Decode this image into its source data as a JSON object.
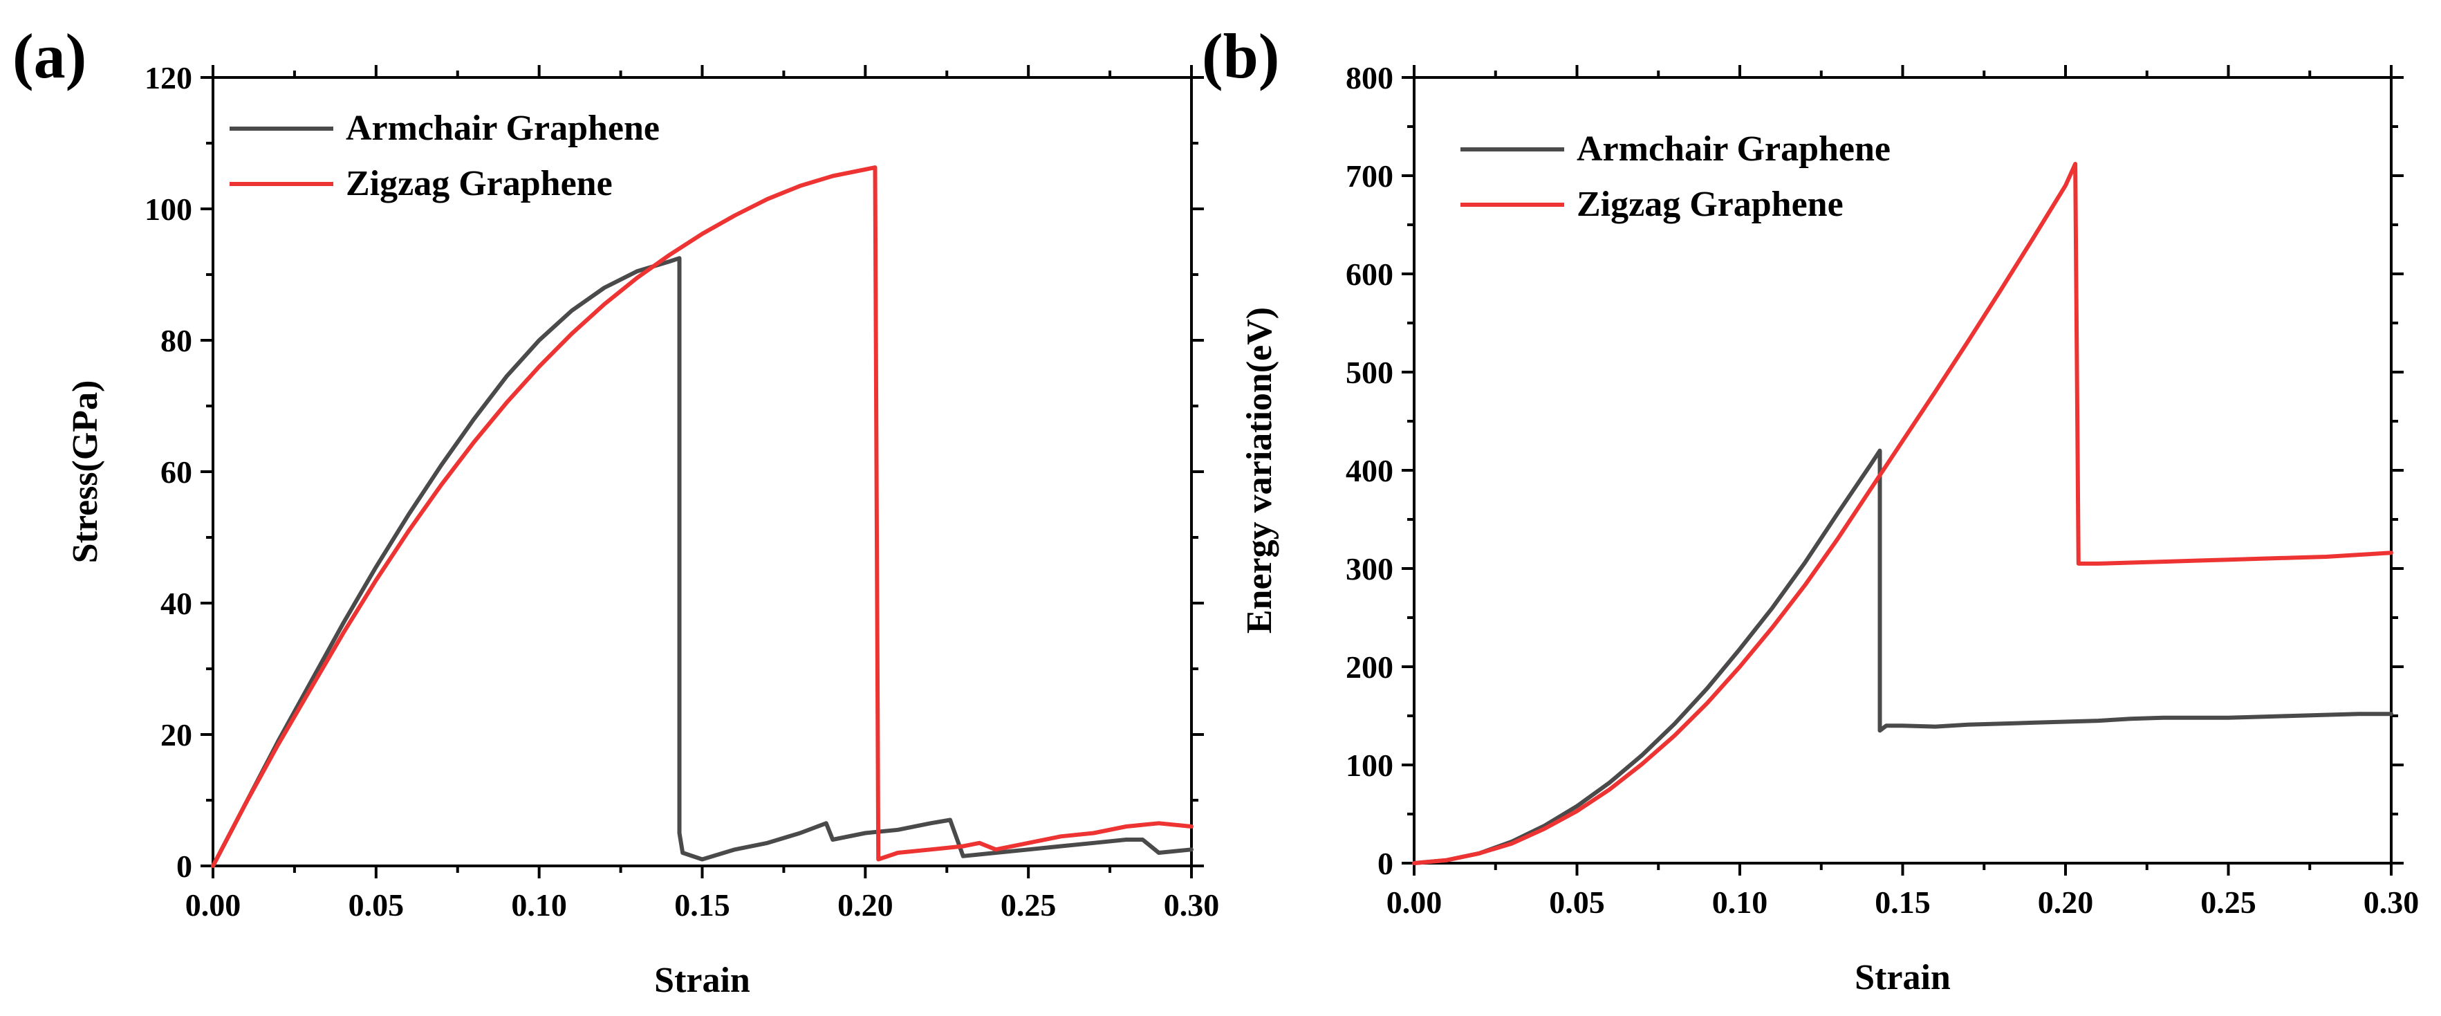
{
  "chart_data": [
    {
      "panel_label": "(a)",
      "type": "line",
      "xlabel": "Strain",
      "ylabel": "Stress(GPa)",
      "xlim": [
        0,
        0.3
      ],
      "ylim": [
        0,
        120
      ],
      "xticks": [
        0.0,
        0.05,
        0.1,
        0.15,
        0.2,
        0.25,
        0.3
      ],
      "xtick_labels": [
        "0.00",
        "0.05",
        "0.10",
        "0.15",
        "0.20",
        "0.25",
        "0.30"
      ],
      "yticks": [
        0,
        20,
        40,
        60,
        80,
        100,
        120
      ],
      "ytick_labels": [
        "0",
        "20",
        "40",
        "60",
        "80",
        "100",
        "120"
      ],
      "grid": false,
      "legend_position": "top-left",
      "series": [
        {
          "name": "Armchair Graphene",
          "color": "#4a4a4a",
          "x": [
            0,
            0.01,
            0.02,
            0.03,
            0.04,
            0.05,
            0.06,
            0.07,
            0.08,
            0.09,
            0.1,
            0.11,
            0.12,
            0.13,
            0.14,
            0.143,
            0.143,
            0.144,
            0.15,
            0.16,
            0.17,
            0.18,
            0.188,
            0.19,
            0.2,
            0.21,
            0.22,
            0.226,
            0.23,
            0.24,
            0.25,
            0.26,
            0.27,
            0.28,
            0.285,
            0.29,
            0.3
          ],
          "y": [
            0,
            9.5,
            19,
            28,
            37,
            45.5,
            53.5,
            61,
            68,
            74.5,
            80,
            84.5,
            88,
            90.5,
            92,
            92.5,
            5,
            2,
            1,
            2.5,
            3.5,
            5,
            6.5,
            4,
            5,
            5.5,
            6.5,
            7,
            1.5,
            2,
            2.5,
            3,
            3.5,
            4,
            4,
            2,
            2.5
          ]
        },
        {
          "name": "Zigzag Graphene",
          "color": "#ee3333",
          "x": [
            0,
            0.01,
            0.02,
            0.03,
            0.04,
            0.05,
            0.06,
            0.07,
            0.08,
            0.09,
            0.1,
            0.11,
            0.12,
            0.13,
            0.14,
            0.15,
            0.16,
            0.17,
            0.18,
            0.19,
            0.2,
            0.203,
            0.204,
            0.21,
            0.22,
            0.23,
            0.235,
            0.24,
            0.25,
            0.26,
            0.27,
            0.28,
            0.29,
            0.3
          ],
          "y": [
            0,
            9.5,
            18.5,
            27,
            35.5,
            43.5,
            51,
            58,
            64.5,
            70.5,
            76,
            81,
            85.5,
            89.5,
            93,
            96.2,
            99,
            101.5,
            103.5,
            105,
            106,
            106.3,
            1,
            2,
            2.5,
            3,
            3.5,
            2.5,
            3.5,
            4.5,
            5,
            6,
            6.5,
            6
          ]
        }
      ]
    },
    {
      "panel_label": "(b)",
      "type": "line",
      "xlabel": "Strain",
      "ylabel": "Energy variation(eV)",
      "xlim": [
        0,
        0.3
      ],
      "ylim": [
        0,
        800
      ],
      "xticks": [
        0.0,
        0.05,
        0.1,
        0.15,
        0.2,
        0.25,
        0.3
      ],
      "xtick_labels": [
        "0.00",
        "0.05",
        "0.10",
        "0.15",
        "0.20",
        "0.25",
        "0.30"
      ],
      "yticks": [
        0,
        100,
        200,
        300,
        400,
        500,
        600,
        700,
        800
      ],
      "ytick_labels": [
        "0",
        "100",
        "200",
        "300",
        "400",
        "500",
        "600",
        "700",
        "800"
      ],
      "grid": false,
      "legend_position": "top-left",
      "series": [
        {
          "name": "Armchair Graphene",
          "color": "#4a4a4a",
          "x": [
            0,
            0.01,
            0.02,
            0.03,
            0.04,
            0.05,
            0.06,
            0.07,
            0.08,
            0.09,
            0.1,
            0.11,
            0.12,
            0.13,
            0.14,
            0.143,
            0.143,
            0.145,
            0.15,
            0.16,
            0.17,
            0.18,
            0.19,
            0.2,
            0.21,
            0.22,
            0.23,
            0.24,
            0.25,
            0.26,
            0.27,
            0.28,
            0.29,
            0.3
          ],
          "y": [
            0,
            3,
            10,
            22,
            38,
            58,
            82,
            110,
            142,
            178,
            218,
            260,
            306,
            356,
            405,
            420,
            135,
            140,
            140,
            139,
            141,
            142,
            143,
            144,
            145,
            147,
            148,
            148,
            148,
            149,
            150,
            151,
            152,
            152
          ]
        },
        {
          "name": "Zigzag Graphene",
          "color": "#ee3333",
          "x": [
            0,
            0.01,
            0.02,
            0.03,
            0.04,
            0.05,
            0.06,
            0.07,
            0.08,
            0.09,
            0.1,
            0.11,
            0.12,
            0.13,
            0.14,
            0.15,
            0.16,
            0.17,
            0.18,
            0.19,
            0.2,
            0.203,
            0.204,
            0.21,
            0.22,
            0.23,
            0.24,
            0.25,
            0.26,
            0.27,
            0.28,
            0.29,
            0.3
          ],
          "y": [
            0,
            3,
            10,
            20,
            35,
            53,
            75,
            101,
            130,
            163,
            200,
            240,
            283,
            330,
            380,
            430,
            480,
            531,
            583,
            636,
            690,
            712,
            305,
            305,
            306,
            307,
            308,
            309,
            310,
            311,
            312,
            314,
            316
          ]
        }
      ]
    }
  ]
}
